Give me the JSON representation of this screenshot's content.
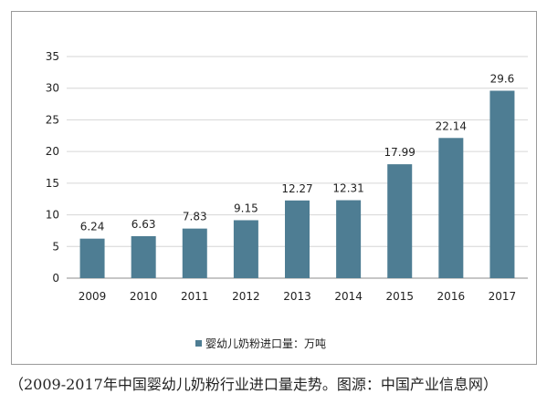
{
  "chart_data": {
    "type": "bar",
    "categories": [
      "2009",
      "2010",
      "2011",
      "2012",
      "2013",
      "2014",
      "2015",
      "2016",
      "2017"
    ],
    "series": [
      {
        "name": "婴幼儿奶粉进口量：万吨",
        "values": [
          6.24,
          6.63,
          7.83,
          9.15,
          12.27,
          12.31,
          17.99,
          22.14,
          29.6
        ],
        "value_labels": [
          "6.24",
          "6.63",
          "7.83",
          "9.15",
          "12.27",
          "12.31",
          "17.99",
          "22.14",
          "29.6"
        ]
      }
    ],
    "ylim": [
      0,
      35
    ],
    "yticks": [
      0,
      5,
      10,
      15,
      20,
      25,
      30,
      35
    ],
    "grid": "horizontal",
    "legend_position": "bottom",
    "bar_color": "#4e7d93",
    "grid_color": "#d6d6d6",
    "axis_color": "#8c8c8c"
  },
  "caption": "（2009-2017年中国婴幼儿奶粉行业进口量走势。图源：中国产业信息网）"
}
